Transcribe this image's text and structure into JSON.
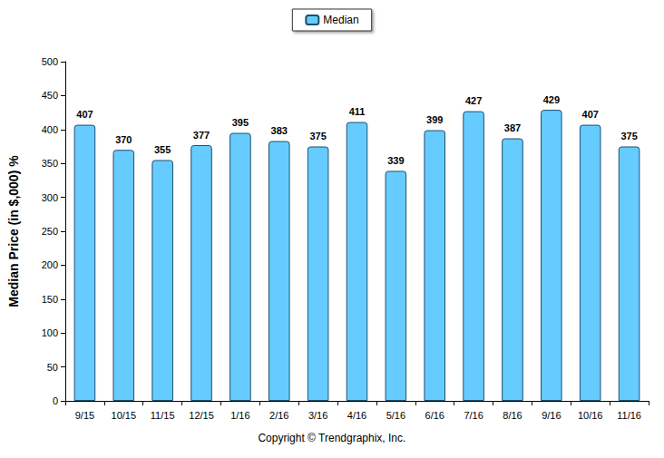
{
  "chart_data": {
    "type": "bar",
    "y_label": "Median Price (in $,000) %",
    "annotations": [
      "Copyright © Trendgraphix, Inc."
    ],
    "categories": [
      "9/15",
      "10/15",
      "11/15",
      "12/15",
      "1/16",
      "2/16",
      "3/16",
      "4/16",
      "5/16",
      "6/16",
      "7/16",
      "8/16",
      "9/16",
      "10/16",
      "11/16"
    ],
    "series": [
      {
        "name": "Median",
        "color": "#66ccff",
        "values": [
          407,
          370,
          355,
          377,
          395,
          383,
          375,
          411,
          339,
          399,
          427,
          387,
          429,
          407,
          375
        ]
      }
    ],
    "ylim": [
      0,
      500
    ],
    "yticks": [
      0,
      50,
      100,
      150,
      200,
      250,
      300,
      350,
      400,
      450,
      500
    ],
    "grid": false,
    "legend": "top",
    "data_labels": true
  }
}
